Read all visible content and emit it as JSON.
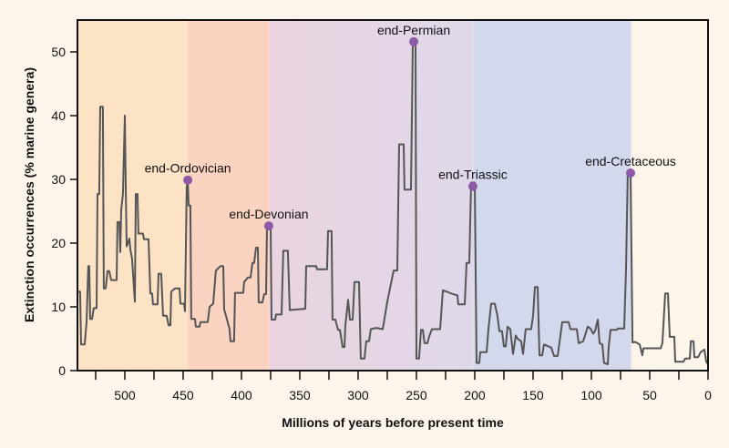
{
  "chart_data": {
    "type": "line",
    "title": "",
    "xlabel": "Millions of years before present time",
    "ylabel": "Extinction occurrences (% marine genera)",
    "xlim": [
      540.6,
      0
    ],
    "ylim": [
      0,
      55
    ],
    "x_reversed": true,
    "x_ticks": [
      500,
      450,
      400,
      350,
      300,
      250,
      200,
      150,
      100,
      50,
      0
    ],
    "x_minor_step": 25,
    "y_ticks": [
      0,
      10,
      20,
      30,
      40,
      50
    ],
    "grid": false,
    "line_color": "#555555",
    "marker_color": "#8e5aa8",
    "background_bands": [
      {
        "from": 540.6,
        "to": 446,
        "color": "#fde3c6"
      },
      {
        "from": 446,
        "to": 376,
        "color": "#fad4c1"
      },
      {
        "from": 376,
        "to": 201,
        "color": "#ead4e0",
        "color_end": "#e0d8ea"
      },
      {
        "from": 201,
        "to": 66,
        "color": "#d3d9ed"
      },
      {
        "from": 66,
        "to": 0,
        "color": "#fdf4ea"
      }
    ],
    "series": [
      {
        "points": [
          [
            540.6,
            12.4
          ],
          [
            538.3,
            12.4
          ],
          [
            537.5,
            4.1
          ],
          [
            534.4,
            4.1
          ],
          [
            532.8,
            7.6
          ],
          [
            531.3,
            16.4
          ],
          [
            530.5,
            16.4
          ],
          [
            529.7,
            8.1
          ],
          [
            528.1,
            8.1
          ],
          [
            526.6,
            9.8
          ],
          [
            524.2,
            9.8
          ],
          [
            523.4,
            27.7
          ],
          [
            521.9,
            27.7
          ],
          [
            521.1,
            41.4
          ],
          [
            518.8,
            41.4
          ],
          [
            518,
            12.9
          ],
          [
            516.4,
            12.9
          ],
          [
            514.8,
            15.6
          ],
          [
            513.3,
            15.6
          ],
          [
            511.7,
            14.2
          ],
          [
            507,
            14.2
          ],
          [
            506.3,
            23.3
          ],
          [
            504.7,
            23.3
          ],
          [
            503.9,
            18.6
          ],
          [
            503.1,
            25.2
          ],
          [
            501.6,
            27.7
          ],
          [
            500,
            40
          ],
          [
            499.2,
            28.8
          ],
          [
            498.4,
            19.5
          ],
          [
            496.1,
            20.7
          ],
          [
            495.3,
            19
          ],
          [
            493.8,
            17.6
          ],
          [
            491.4,
            10.8
          ],
          [
            490.6,
            27.7
          ],
          [
            489.1,
            27.7
          ],
          [
            488.3,
            21.5
          ],
          [
            484.4,
            21.5
          ],
          [
            483.6,
            20.6
          ],
          [
            479.7,
            20.6
          ],
          [
            478.1,
            12.1
          ],
          [
            476.6,
            12.1
          ],
          [
            475.8,
            10.4
          ],
          [
            471.9,
            10.4
          ],
          [
            471.1,
            15.2
          ],
          [
            468.8,
            15.2
          ],
          [
            467.2,
            8.6
          ],
          [
            464.1,
            8.6
          ],
          [
            462.5,
            7.1
          ],
          [
            460.9,
            7.1
          ],
          [
            460.2,
            12.4
          ],
          [
            457,
            12.9
          ],
          [
            453.1,
            12.9
          ],
          [
            452.3,
            10.5
          ],
          [
            449.2,
            10.5
          ],
          [
            448.4,
            9.3
          ],
          [
            446.9,
            28.8
          ],
          [
            446.1,
            29.8
          ],
          [
            445.3,
            25.9
          ],
          [
            443.8,
            25.9
          ],
          [
            443,
            8.1
          ],
          [
            439.8,
            8.1
          ],
          [
            439.1,
            6.9
          ],
          [
            435.9,
            6.9
          ],
          [
            435.2,
            7.6
          ],
          [
            428.9,
            7.6
          ],
          [
            427.3,
            10
          ],
          [
            424.2,
            10.5
          ],
          [
            421.9,
            15.7
          ],
          [
            418,
            16.4
          ],
          [
            415.6,
            16.4
          ],
          [
            414.8,
            9.6
          ],
          [
            413.3,
            8.6
          ],
          [
            410.2,
            6.5
          ],
          [
            409.4,
            4.6
          ],
          [
            406.3,
            4.6
          ],
          [
            405.5,
            12.2
          ],
          [
            398.4,
            12.2
          ],
          [
            397.7,
            13.9
          ],
          [
            394.5,
            14.6
          ],
          [
            392.2,
            14.6
          ],
          [
            390.6,
            16.9
          ],
          [
            389.1,
            16.9
          ],
          [
            387.5,
            19.3
          ],
          [
            385.9,
            19.3
          ],
          [
            385.2,
            10.7
          ],
          [
            382,
            10.7
          ],
          [
            380.5,
            12
          ],
          [
            378.9,
            12
          ],
          [
            378.1,
            22.7
          ],
          [
            375,
            22.7
          ],
          [
            374.2,
            8
          ],
          [
            371.1,
            8
          ],
          [
            370.3,
            8.8
          ],
          [
            365.6,
            8.8
          ],
          [
            364.1,
            18.8
          ],
          [
            360.2,
            18.8
          ],
          [
            358.6,
            9.5
          ],
          [
            345.3,
            9.7
          ],
          [
            344.5,
            16.4
          ],
          [
            335.9,
            16.4
          ],
          [
            335.2,
            15.9
          ],
          [
            326.6,
            15.9
          ],
          [
            325.8,
            21.9
          ],
          [
            322.7,
            21.9
          ],
          [
            321.9,
            8
          ],
          [
            319.5,
            8
          ],
          [
            317.2,
            6.4
          ],
          [
            315.6,
            6.4
          ],
          [
            313.3,
            3.7
          ],
          [
            311.7,
            3.7
          ],
          [
            310.9,
            7.1
          ],
          [
            308.6,
            11.1
          ],
          [
            307,
            8
          ],
          [
            304.7,
            8
          ],
          [
            303.1,
            13.9
          ],
          [
            299.2,
            13.9
          ],
          [
            297.7,
            1.9
          ],
          [
            294.5,
            1.9
          ],
          [
            293,
            4.6
          ],
          [
            290.6,
            4.6
          ],
          [
            289.1,
            6.5
          ],
          [
            284.4,
            6.7
          ],
          [
            278.9,
            6.5
          ],
          [
            275,
            10.8
          ],
          [
            269.5,
            15.7
          ],
          [
            266.4,
            15.7
          ],
          [
            264.8,
            35.5
          ],
          [
            260.9,
            35.5
          ],
          [
            260.2,
            28.4
          ],
          [
            254.7,
            28.4
          ],
          [
            253.1,
            51.4
          ],
          [
            250.8,
            51.4
          ],
          [
            250,
            1.9
          ],
          [
            247.7,
            1.9
          ],
          [
            246.1,
            6.4
          ],
          [
            244.5,
            6.4
          ],
          [
            243,
            4.3
          ],
          [
            240.6,
            4.3
          ],
          [
            239.1,
            5.3
          ],
          [
            236.7,
            6.5
          ],
          [
            229.7,
            6.5
          ],
          [
            227.3,
            12.6
          ],
          [
            222.7,
            12.3
          ],
          [
            220.3,
            12.1
          ],
          [
            214.8,
            11.8
          ],
          [
            214.1,
            10.4
          ],
          [
            208.6,
            10.4
          ],
          [
            207,
            16.9
          ],
          [
            204.7,
            16.9
          ],
          [
            203.1,
            29.5
          ],
          [
            200,
            29.5
          ],
          [
            198.4,
            1.2
          ],
          [
            196.1,
            1.2
          ],
          [
            195.3,
            2.9
          ],
          [
            189.8,
            2.9
          ],
          [
            188.3,
            6.5
          ],
          [
            185.9,
            10.5
          ],
          [
            182.8,
            10.5
          ],
          [
            180.5,
            8.6
          ],
          [
            178.9,
            6.2
          ],
          [
            176.6,
            6.2
          ],
          [
            175,
            3.8
          ],
          [
            173.4,
            3.8
          ],
          [
            171.9,
            6.9
          ],
          [
            169.5,
            6.5
          ],
          [
            167.2,
            2.6
          ],
          [
            164.8,
            5.5
          ],
          [
            163.3,
            5
          ],
          [
            160.2,
            4.6
          ],
          [
            158.6,
            2.6
          ],
          [
            156.3,
            6.5
          ],
          [
            151.6,
            6.5
          ],
          [
            150,
            8.6
          ],
          [
            148.4,
            13.1
          ],
          [
            146.1,
            13.1
          ],
          [
            144.5,
            2.4
          ],
          [
            142.2,
            2.4
          ],
          [
            140.6,
            4.1
          ],
          [
            134.4,
            3.6
          ],
          [
            132,
            2.3
          ],
          [
            128.9,
            2.3
          ],
          [
            125,
            7.6
          ],
          [
            119.5,
            7.6
          ],
          [
            118,
            6.5
          ],
          [
            112.5,
            6.5
          ],
          [
            110.9,
            4.3
          ],
          [
            107,
            4.6
          ],
          [
            103.1,
            6.9
          ],
          [
            100.8,
            6.6
          ],
          [
            98.4,
            5.8
          ],
          [
            96.9,
            6.2
          ],
          [
            94.5,
            8
          ],
          [
            93,
            4.3
          ],
          [
            90.6,
            4.1
          ],
          [
            89.1,
            1.2
          ],
          [
            85.9,
            1
          ],
          [
            85.2,
            3.6
          ],
          [
            83.6,
            6.4
          ],
          [
            78.1,
            6.4
          ],
          [
            77.3,
            6.6
          ],
          [
            71.9,
            6.6
          ],
          [
            70.3,
            15.9
          ],
          [
            68.8,
            31
          ],
          [
            66.4,
            31
          ],
          [
            64.8,
            4.4
          ],
          [
            62.5,
            4.5
          ],
          [
            58.6,
            4.1
          ],
          [
            56.3,
            2.4
          ],
          [
            55.5,
            3.5
          ],
          [
            40.6,
            3.5
          ],
          [
            39.1,
            4.3
          ],
          [
            36.7,
            12.1
          ],
          [
            34.4,
            12.1
          ],
          [
            32.8,
            5.3
          ],
          [
            28.9,
            5.3
          ],
          [
            28.1,
            1.4
          ],
          [
            21.1,
            1.4
          ],
          [
            19.5,
            1.9
          ],
          [
            15.6,
            1.9
          ],
          [
            14.8,
            4.6
          ],
          [
            12.5,
            4.6
          ],
          [
            11.7,
            2.1
          ],
          [
            8.6,
            2.1
          ],
          [
            6.3,
            2.9
          ],
          [
            3.1,
            3.3
          ],
          [
            1.6,
            1.4
          ],
          [
            0,
            1
          ]
        ]
      }
    ],
    "annotations": [
      {
        "label": "end-Ordovician",
        "x": 446,
        "y": 29.9
      },
      {
        "label": "end-Devonian",
        "x": 376.6,
        "y": 22.7
      },
      {
        "label": "end-Permian",
        "x": 252.3,
        "y": 51.6
      },
      {
        "label": "end-Triassic",
        "x": 201.6,
        "y": 28.9
      },
      {
        "label": "end-Cretaceous",
        "x": 66.4,
        "y": 31
      }
    ]
  }
}
